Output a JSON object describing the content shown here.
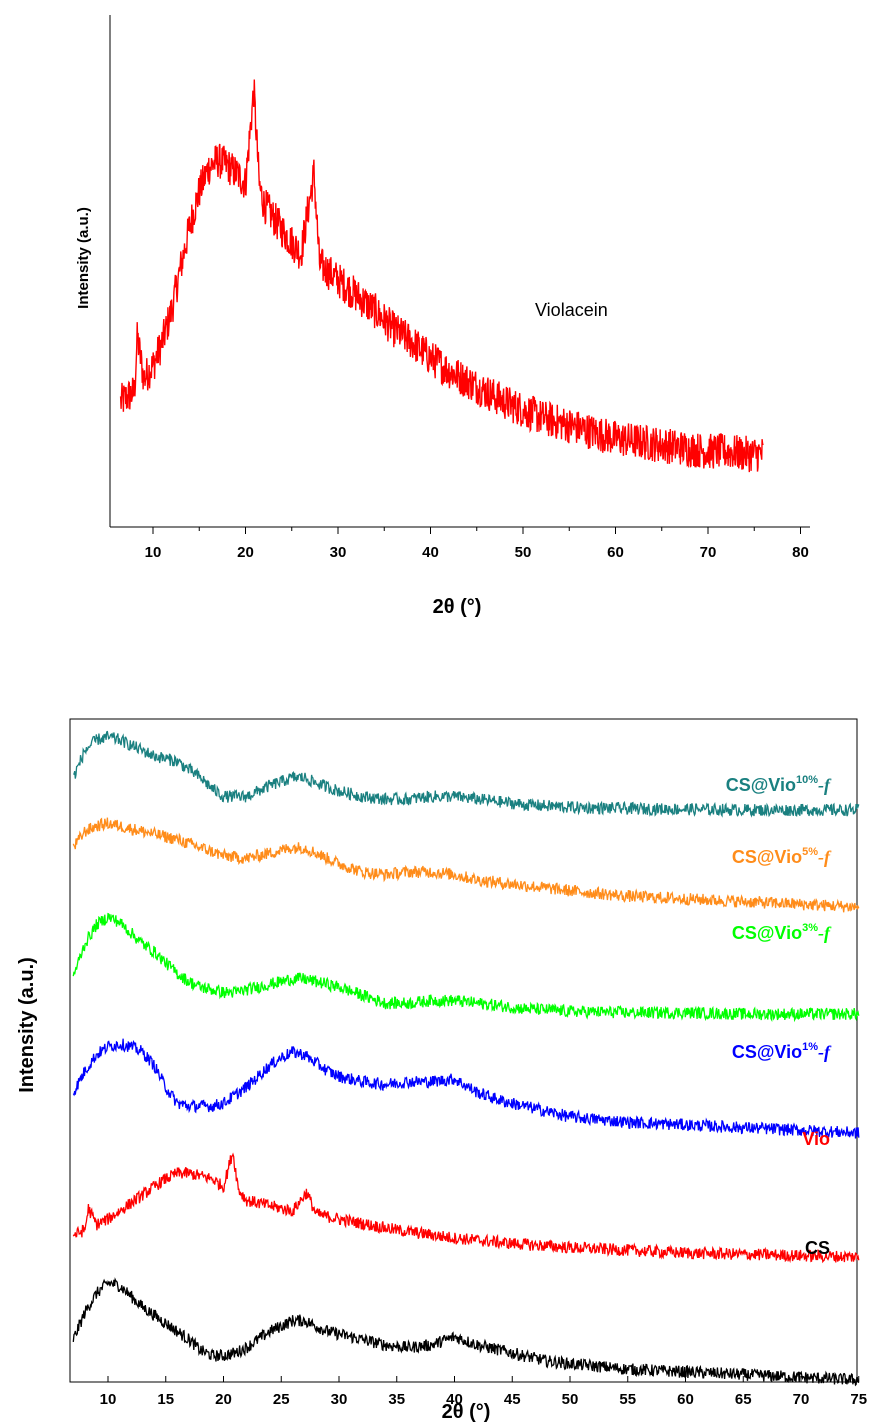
{
  "chart_data": [
    {
      "type": "line",
      "xlabel": "2θ (°)",
      "ylabel": "Intensity (a.u.)",
      "xlim": [
        6,
        80
      ],
      "xticks": [
        "10",
        "20",
        "30",
        "40",
        "50",
        "60",
        "70",
        "80"
      ],
      "annotation": "Violacein",
      "series": [
        {
          "name": "Violacein",
          "color": "#ff0000",
          "x": [
            6.5,
            8,
            8.3,
            9,
            10,
            11,
            12,
            13,
            14,
            15,
            16,
            17,
            18,
            19,
            20,
            20.9,
            21.5,
            22,
            24,
            26,
            27.4,
            28,
            30,
            32,
            34,
            36,
            38,
            40,
            42,
            44,
            46,
            48,
            50,
            52,
            54,
            56,
            58,
            60,
            62,
            64,
            66,
            68,
            70,
            72,
            74,
            76
          ],
          "y": [
            30,
            34,
            55,
            39,
            44,
            53,
            65,
            82,
            98,
            111,
            120,
            123,
            121,
            118,
            114,
            150,
            113,
            106,
            96,
            87,
            118,
            83,
            77,
            71,
            65,
            58,
            53,
            47,
            42,
            38,
            34,
            30,
            27,
            24,
            22,
            20,
            18,
            16,
            15,
            14,
            13,
            12,
            11,
            11,
            10,
            10
          ]
        }
      ]
    },
    {
      "type": "line",
      "xlabel": "2θ (°)",
      "ylabel": "Intensity (a.u.)",
      "xlim": [
        7,
        75
      ],
      "xticks": [
        "10",
        "15",
        "20",
        "25",
        "30",
        "35",
        "40",
        "45",
        "50",
        "55",
        "60",
        "65",
        "70",
        "75"
      ],
      "series": [
        {
          "name": "CS",
          "label": "CS",
          "label_sup": "",
          "label_f": false,
          "color": "#000000",
          "x": [
            7,
            8,
            9,
            10,
            11,
            12,
            13,
            14,
            15,
            16,
            17,
            18,
            19,
            20,
            21,
            22,
            23,
            24,
            25,
            26,
            27,
            28,
            29,
            30,
            32,
            34,
            36,
            38,
            40,
            42,
            44,
            46,
            48,
            50,
            55,
            60,
            65,
            70,
            75
          ],
          "y": [
            1.5,
            2.5,
            3.2,
            3.6,
            3.5,
            3.1,
            2.7,
            2.4,
            2.1,
            1.8,
            1.5,
            1.1,
            0.9,
            0.9,
            1.0,
            1.2,
            1.5,
            1.8,
            2.0,
            2.2,
            2.2,
            2.0,
            1.8,
            1.7,
            1.5,
            1.3,
            1.2,
            1.3,
            1.6,
            1.3,
            1.1,
            0.9,
            0.7,
            0.6,
            0.4,
            0.3,
            0.2,
            0.1,
            0
          ]
        },
        {
          "name": "Vio",
          "label": "Vio",
          "label_sup": "",
          "label_f": false,
          "color": "#ff0000",
          "x": [
            7,
            8,
            8.3,
            9,
            10,
            12,
            14,
            15,
            16,
            17,
            18,
            19,
            20,
            20.8,
            21.3,
            22,
            24,
            26,
            27.2,
            28,
            30,
            35,
            40,
            45,
            50,
            55,
            60,
            65,
            70,
            75
          ],
          "y": [
            0.8,
            1.0,
            1.8,
            1.2,
            1.4,
            2.0,
            2.6,
            2.9,
            3.1,
            3.1,
            3.0,
            2.9,
            2.6,
            3.9,
            2.5,
            2.1,
            1.9,
            1.7,
            2.4,
            1.6,
            1.4,
            1.0,
            0.7,
            0.5,
            0.35,
            0.25,
            0.15,
            0.1,
            0.05,
            0
          ]
        },
        {
          "name": "CS@Vio1%-f",
          "label": "CS@Vio",
          "label_sup": "1%",
          "label_f": true,
          "color": "#0000ff",
          "x": [
            7,
            8,
            9,
            10,
            11,
            12,
            13,
            14,
            15,
            16,
            17,
            18,
            19,
            20,
            21,
            22,
            23,
            24,
            25,
            26,
            27,
            28,
            29,
            30,
            32,
            34,
            36,
            38,
            40,
            42,
            44,
            46,
            48,
            50,
            55,
            60,
            65,
            70,
            75
          ],
          "y": [
            1.5,
            2.3,
            2.9,
            3.2,
            3.3,
            3.2,
            3.0,
            2.5,
            1.7,
            1.1,
            1.0,
            1.0,
            1.0,
            1.1,
            1.4,
            1.7,
            2.1,
            2.5,
            2.8,
            3.0,
            2.9,
            2.6,
            2.3,
            2.1,
            1.9,
            1.8,
            1.9,
            1.9,
            2.0,
            1.5,
            1.2,
            1.0,
            0.8,
            0.6,
            0.4,
            0.3,
            0.2,
            0.1,
            0
          ]
        },
        {
          "name": "CS@Vio3%-f",
          "label": "CS@Vio",
          "label_sup": "3%",
          "label_f": true,
          "color": "#00ff00",
          "x": [
            7,
            8,
            9,
            10,
            11,
            12,
            13,
            14,
            15,
            16,
            17,
            18,
            19,
            20,
            21,
            22,
            24,
            26,
            27,
            28,
            30,
            32,
            34,
            36,
            38,
            40,
            42,
            44,
            46,
            48,
            50,
            55,
            60,
            65,
            70,
            75
          ],
          "y": [
            1.4,
            2.6,
            3.3,
            3.6,
            3.4,
            3.0,
            2.6,
            2.3,
            1.9,
            1.5,
            1.2,
            1.0,
            0.9,
            0.8,
            0.8,
            0.9,
            1.1,
            1.3,
            1.3,
            1.2,
            1.0,
            0.7,
            0.4,
            0.4,
            0.5,
            0.5,
            0.4,
            0.3,
            0.2,
            0.15,
            0.1,
            0.05,
            0.05,
            0,
            0,
            0
          ]
        },
        {
          "name": "CS@Vio5%-f",
          "label": "CS@Vio",
          "label_sup": "5%",
          "label_f": true,
          "color": "#ff8c1a",
          "x": [
            7,
            8,
            9,
            10,
            11,
            12,
            14,
            16,
            18,
            20,
            22,
            24,
            26,
            27,
            28,
            30,
            32,
            34,
            36,
            38,
            40,
            42,
            44,
            46,
            48,
            50,
            55,
            60,
            65,
            70,
            75
          ],
          "y": [
            2.2,
            2.8,
            3.0,
            3.1,
            3.0,
            2.9,
            2.7,
            2.5,
            2.2,
            1.9,
            1.8,
            2.0,
            2.2,
            2.2,
            2.0,
            1.6,
            1.3,
            1.2,
            1.3,
            1.3,
            1.2,
            1.0,
            0.9,
            0.8,
            0.7,
            0.6,
            0.4,
            0.3,
            0.2,
            0.1,
            0
          ]
        },
        {
          "name": "CS@Vio10%-f",
          "label": "CS@Vio",
          "label_sup": "10%",
          "label_f": true,
          "color": "#1a8080",
          "x": [
            7,
            8,
            9,
            10,
            11,
            12,
            13,
            14,
            15,
            16,
            17,
            18,
            19,
            20,
            22,
            24,
            26,
            27,
            28,
            30,
            32,
            34,
            36,
            38,
            40,
            42,
            44,
            46,
            48,
            50,
            55,
            60,
            65,
            70,
            75
          ],
          "y": [
            1.2,
            2.2,
            2.6,
            2.7,
            2.6,
            2.4,
            2.2,
            2.0,
            1.9,
            1.8,
            1.5,
            1.2,
            0.8,
            0.5,
            0.5,
            0.9,
            1.2,
            1.2,
            1.0,
            0.7,
            0.5,
            0.4,
            0.4,
            0.5,
            0.5,
            0.4,
            0.3,
            0.2,
            0.15,
            0.1,
            0.05,
            0.03,
            0,
            0,
            0
          ]
        }
      ]
    }
  ]
}
